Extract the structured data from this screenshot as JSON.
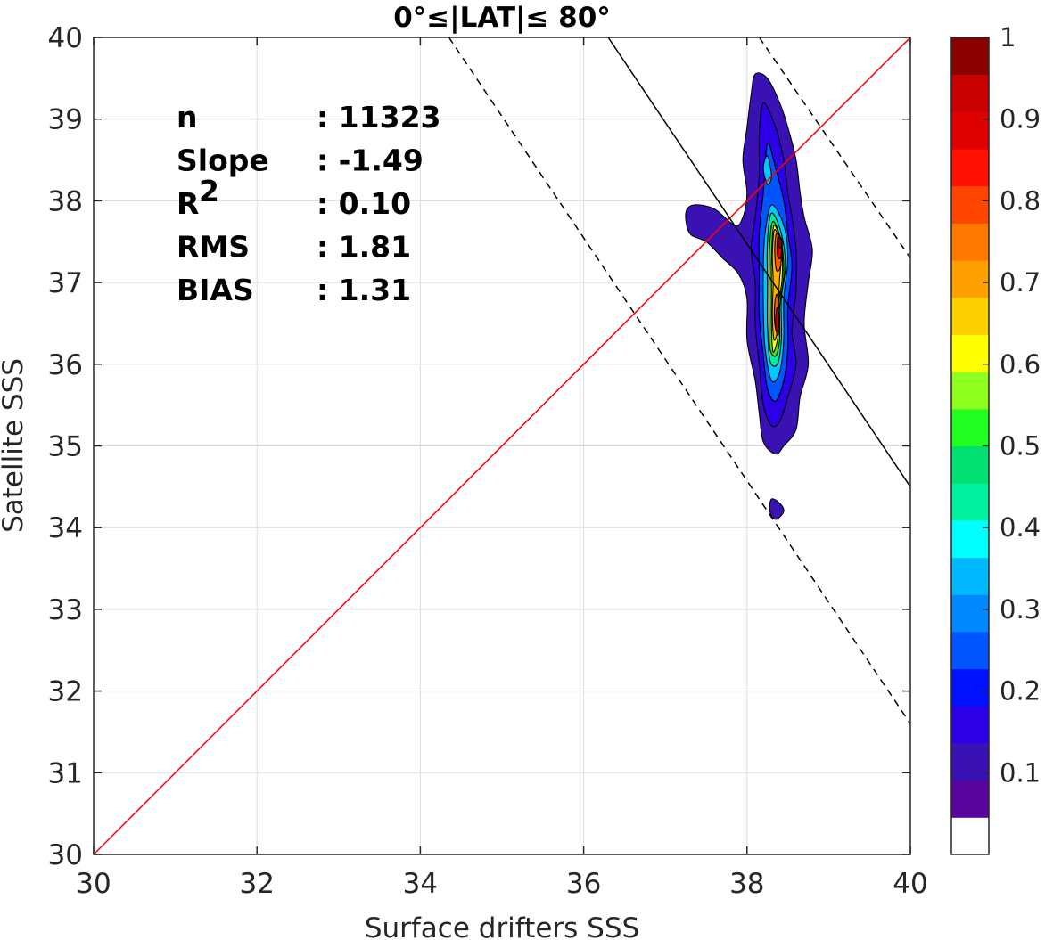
{
  "chart_data": {
    "type": "contour",
    "title": "0°≤|LAT|≤ 80°",
    "xlabel": "Surface drifters SSS",
    "ylabel": "Satellite SSS",
    "xlim": [
      30,
      40
    ],
    "ylim": [
      30,
      40
    ],
    "xticks": [
      "30",
      "32",
      "34",
      "36",
      "38",
      "40"
    ],
    "yticks": [
      "30",
      "31",
      "32",
      "33",
      "34",
      "35",
      "36",
      "37",
      "38",
      "39",
      "40"
    ],
    "grid": true,
    "stats": [
      {
        "label": "n",
        "value": ": 11323"
      },
      {
        "label": "Slope",
        "value": ": -1.49"
      },
      {
        "label": "R",
        "sup": "2",
        "value": ": 0.10"
      },
      {
        "label": "RMS",
        "value": ": 1.81"
      },
      {
        "label": "BIAS",
        "value": ": 1.31"
      }
    ],
    "reference_lines": {
      "one_to_one": {
        "color": "#ff0000",
        "points": [
          [
            30,
            30
          ],
          [
            40,
            40
          ]
        ]
      },
      "regression": {
        "color": "#000000",
        "style": "solid",
        "points": [
          [
            36.3,
            40
          ],
          [
            40,
            34.5
          ]
        ]
      },
      "regression_upper": {
        "color": "#000000",
        "style": "dashed",
        "points": [
          [
            38.15,
            40
          ],
          [
            40,
            37.3
          ]
        ]
      },
      "regression_lower": {
        "color": "#000000",
        "style": "dashed",
        "points": [
          [
            34.35,
            40
          ],
          [
            40,
            31.6
          ]
        ]
      }
    },
    "density_levels": [
      {
        "level": 0.05,
        "color": "#3a12b3",
        "contours": [
          [
            [
              38.1,
              39.55
            ],
            [
              38.25,
              39.5
            ],
            [
              38.4,
              39.2
            ],
            [
              38.5,
              38.9
            ],
            [
              38.6,
              38.5
            ],
            [
              38.65,
              38.1
            ],
            [
              38.7,
              37.8
            ],
            [
              38.8,
              37.4
            ],
            [
              38.75,
              37.0
            ],
            [
              38.7,
              36.5
            ],
            [
              38.75,
              36.0
            ],
            [
              38.65,
              35.6
            ],
            [
              38.6,
              35.2
            ],
            [
              38.45,
              35.0
            ],
            [
              38.35,
              34.9
            ],
            [
              38.2,
              35.05
            ],
            [
              38.15,
              35.4
            ],
            [
              38.1,
              35.8
            ],
            [
              38.0,
              36.3
            ],
            [
              38.0,
              36.8
            ],
            [
              37.9,
              37.1
            ],
            [
              37.7,
              37.3
            ],
            [
              37.5,
              37.5
            ],
            [
              37.3,
              37.6
            ],
            [
              37.25,
              37.85
            ],
            [
              37.35,
              37.95
            ],
            [
              37.6,
              37.9
            ],
            [
              37.85,
              37.7
            ],
            [
              37.95,
              37.8
            ],
            [
              38.0,
              38.1
            ],
            [
              37.95,
              38.5
            ],
            [
              38.0,
              38.9
            ],
            [
              38.05,
              39.3
            ]
          ],
          [
            [
              38.3,
              34.35
            ],
            [
              38.4,
              34.3
            ],
            [
              38.45,
              34.2
            ],
            [
              38.35,
              34.1
            ],
            [
              38.28,
              34.2
            ]
          ]
        ]
      },
      {
        "level": 0.1,
        "color": "#2b00e5",
        "contours": [
          [
            [
              38.2,
              39.2
            ],
            [
              38.35,
              38.9
            ],
            [
              38.45,
              38.5
            ],
            [
              38.5,
              38.1
            ],
            [
              38.55,
              37.8
            ],
            [
              38.6,
              37.4
            ],
            [
              38.6,
              36.9
            ],
            [
              38.55,
              36.4
            ],
            [
              38.6,
              36.0
            ],
            [
              38.5,
              35.6
            ],
            [
              38.4,
              35.3
            ],
            [
              38.3,
              35.25
            ],
            [
              38.2,
              35.5
            ],
            [
              38.15,
              36.0
            ],
            [
              38.1,
              36.5
            ],
            [
              38.1,
              37.0
            ],
            [
              38.05,
              37.4
            ],
            [
              38.1,
              37.8
            ],
            [
              38.15,
              38.3
            ],
            [
              38.15,
              38.8
            ]
          ]
        ]
      },
      {
        "level": 0.2,
        "color": "#0055ff",
        "contours": [
          [
            [
              38.25,
              38.7
            ],
            [
              38.35,
              38.4
            ],
            [
              38.45,
              38.0
            ],
            [
              38.5,
              37.6
            ],
            [
              38.55,
              37.2
            ],
            [
              38.5,
              36.7
            ],
            [
              38.5,
              36.2
            ],
            [
              38.45,
              35.8
            ],
            [
              38.35,
              35.55
            ],
            [
              38.25,
              35.7
            ],
            [
              38.2,
              36.1
            ],
            [
              38.15,
              36.6
            ],
            [
              38.15,
              37.1
            ],
            [
              38.15,
              37.6
            ],
            [
              38.2,
              38.1
            ]
          ]
        ]
      },
      {
        "level": 0.3,
        "color": "#00c8ff",
        "contours": [
          [
            [
              38.25,
              38.55
            ],
            [
              38.3,
              38.3
            ],
            [
              38.25,
              38.2
            ],
            [
              38.2,
              38.4
            ]
          ],
          [
            [
              38.3,
              37.95
            ],
            [
              38.45,
              37.7
            ],
            [
              38.5,
              37.3
            ],
            [
              38.45,
              36.8
            ],
            [
              38.45,
              36.3
            ],
            [
              38.4,
              35.9
            ],
            [
              38.3,
              35.8
            ],
            [
              38.22,
              36.2
            ],
            [
              38.2,
              36.7
            ],
            [
              38.2,
              37.2
            ],
            [
              38.22,
              37.6
            ]
          ]
        ]
      },
      {
        "level": 0.4,
        "color": "#00f0a0",
        "contours": [
          [
            [
              38.3,
              37.85
            ],
            [
              38.42,
              37.6
            ],
            [
              38.47,
              37.2
            ],
            [
              38.42,
              36.8
            ],
            [
              38.42,
              36.3
            ],
            [
              38.37,
              36.0
            ],
            [
              38.28,
              36.05
            ],
            [
              38.25,
              36.5
            ],
            [
              38.25,
              37.0
            ],
            [
              38.25,
              37.5
            ]
          ]
        ]
      },
      {
        "level": 0.5,
        "color": "#40e020",
        "contours": [
          [
            [
              38.32,
              37.75
            ],
            [
              38.42,
              37.5
            ],
            [
              38.45,
              37.1
            ],
            [
              38.4,
              36.7
            ],
            [
              38.4,
              36.3
            ],
            [
              38.35,
              36.1
            ],
            [
              38.28,
              36.2
            ],
            [
              38.27,
              36.6
            ],
            [
              38.27,
              37.1
            ],
            [
              38.28,
              37.5
            ]
          ]
        ]
      },
      {
        "level": 0.6,
        "color": "#ffff00",
        "contours": [
          [
            [
              38.33,
              37.7
            ],
            [
              38.42,
              37.45
            ],
            [
              38.43,
              37.05
            ],
            [
              38.38,
              36.7
            ],
            [
              38.38,
              36.35
            ],
            [
              38.32,
              36.15
            ],
            [
              38.3,
              36.45
            ],
            [
              38.3,
              36.9
            ],
            [
              38.3,
              37.3
            ]
          ]
        ]
      },
      {
        "level": 0.7,
        "color": "#ffb000",
        "contours": [
          [
            [
              38.34,
              37.65
            ],
            [
              38.42,
              37.4
            ],
            [
              38.4,
              37.05
            ],
            [
              38.38,
              36.7
            ],
            [
              38.37,
              36.4
            ],
            [
              38.33,
              36.3
            ],
            [
              38.31,
              36.6
            ],
            [
              38.32,
              37.0
            ],
            [
              38.31,
              37.35
            ]
          ]
        ]
      },
      {
        "level": 0.8,
        "color": "#ff5a00",
        "contours": [
          [
            [
              38.36,
              37.6
            ],
            [
              38.42,
              37.45
            ],
            [
              38.41,
              37.2
            ],
            [
              38.36,
              37.15
            ],
            [
              38.34,
              37.4
            ]
          ],
          [
            [
              38.37,
              36.85
            ],
            [
              38.4,
              36.55
            ],
            [
              38.38,
              36.35
            ],
            [
              38.34,
              36.5
            ],
            [
              38.34,
              36.75
            ]
          ]
        ]
      },
      {
        "level": 0.9,
        "color": "#e00000",
        "contours": [
          [
            [
              38.38,
              37.58
            ],
            [
              38.43,
              37.5
            ],
            [
              38.41,
              37.3
            ],
            [
              38.37,
              37.35
            ]
          ],
          [
            [
              38.37,
              36.7
            ],
            [
              38.39,
              36.5
            ],
            [
              38.36,
              36.4
            ],
            [
              38.35,
              36.55
            ]
          ]
        ]
      },
      {
        "level": 0.95,
        "color": "#8b0000",
        "contours": [
          [
            [
              38.39,
              37.55
            ],
            [
              38.43,
              37.5
            ],
            [
              38.41,
              37.42
            ],
            [
              38.38,
              37.46
            ]
          ]
        ]
      }
    ],
    "colorbar": {
      "ticks": [
        "1",
        "0.9",
        "0.8",
        "0.7",
        "0.6",
        "0.5",
        "0.4",
        "0.3",
        "0.2",
        "0.1"
      ],
      "colors": [
        "#ffffff",
        "#5a049e",
        "#3a12b3",
        "#2b00e5",
        "#0011ff",
        "#0055ff",
        "#0088ff",
        "#00b8ff",
        "#00ffff",
        "#00f0a0",
        "#00e070",
        "#20ff20",
        "#90ff20",
        "#ffff00",
        "#ffd000",
        "#ffa000",
        "#ff7800",
        "#ff4500",
        "#ff1000",
        "#e00000",
        "#c80000",
        "#8b0000"
      ]
    }
  }
}
